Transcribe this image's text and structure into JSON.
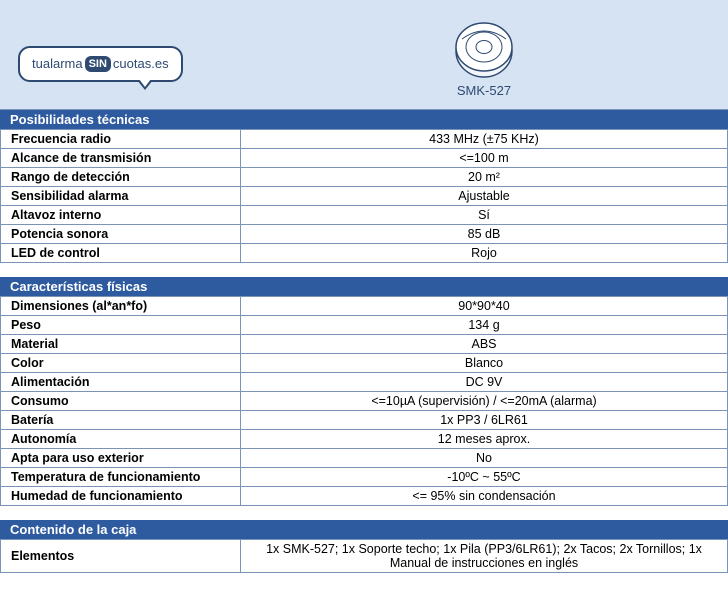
{
  "colors": {
    "header_bg": "#d6e3f3",
    "section_bg": "#2e5aa0",
    "section_fg": "#ffffff",
    "border": "#7a94b8",
    "text": "#000000",
    "accent": "#2e4a70"
  },
  "logo": {
    "prefix": "tualarma",
    "badge": "SIN",
    "suffix": "cuotas.es"
  },
  "product": {
    "model": "SMK-527"
  },
  "sections": [
    {
      "title": "Posibilidades técnicas",
      "rows": [
        {
          "label": "Frecuencia radio",
          "value": "433 MHz (±75 KHz)"
        },
        {
          "label": "Alcance de transmisión",
          "value": "<=100 m"
        },
        {
          "label": "Rango de detección",
          "value": "20 m²"
        },
        {
          "label": "Sensibilidad alarma",
          "value": "Ajustable"
        },
        {
          "label": "Altavoz interno",
          "value": "Sí"
        },
        {
          "label": "Potencia sonora",
          "value": "85 dB"
        },
        {
          "label": "LED de control",
          "value": "Rojo"
        }
      ]
    },
    {
      "title": "Características físicas",
      "rows": [
        {
          "label": "Dimensiones (al*an*fo)",
          "value": "90*90*40"
        },
        {
          "label": "Peso",
          "value": "134 g"
        },
        {
          "label": "Material",
          "value": "ABS"
        },
        {
          "label": "Color",
          "value": "Blanco"
        },
        {
          "label": "Alimentación",
          "value": "DC 9V"
        },
        {
          "label": "Consumo",
          "value": "<=10µA (supervisión) / <=20mA (alarma)"
        },
        {
          "label": "Batería",
          "value": "1x PP3 / 6LR61"
        },
        {
          "label": "Autonomía",
          "value": "12 meses aprox."
        },
        {
          "label": "Apta para uso exterior",
          "value": "No"
        },
        {
          "label": "Temperatura de funcionamiento",
          "value": "-10ºC ~ 55ºC"
        },
        {
          "label": "Humedad de funcionamiento",
          "value": "<= 95% sin condensación"
        }
      ]
    },
    {
      "title": "Contenido de la caja",
      "rows": [
        {
          "label": "Elementos",
          "value": "1x SMK-527; 1x Soporte techo; 1x Pila (PP3/6LR61); 2x Tacos; 2x Tornillos; 1x Manual de instrucciones en inglés"
        }
      ]
    }
  ]
}
